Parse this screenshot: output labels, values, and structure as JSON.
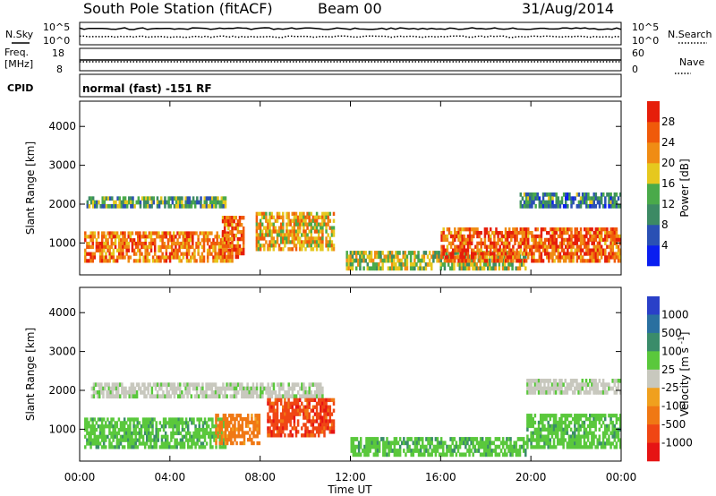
{
  "header": {
    "station_title": "South Pole Station (fitACF)",
    "beam": "Beam 00",
    "date": "31/Aug/2014"
  },
  "status_panels": {
    "nsky_label": "N.Sky",
    "nsearch_label": "N.Search",
    "noise_ticks_left": [
      "10^5",
      "10^0"
    ],
    "noise_ticks_right": [
      "10^5",
      "10^0"
    ],
    "freq_label_1": "Freq.",
    "freq_label_2": "[MHz]",
    "freq_ticks": [
      "18",
      "8"
    ],
    "nave_label": "Nave",
    "nave_ticks": [
      "60",
      "0"
    ],
    "cpid_label": "CPID",
    "cpid_text": "normal (fast) -151 RF"
  },
  "colors": {
    "power_scale": [
      "#0a1ef0",
      "#2a50b4",
      "#3c8a64",
      "#4aaa4a",
      "#e6c81e",
      "#f08c14",
      "#f05a0a",
      "#e61e0a"
    ],
    "velocity_scale": [
      "#2a40c8",
      "#2a70a0",
      "#3a8c6a",
      "#5ac83c",
      "#c8c8be",
      "#f0a01e",
      "#f07814",
      "#f04614",
      "#e61414"
    ]
  },
  "chart_data": [
    {
      "type": "heatmap",
      "title": "",
      "ylabel": "Slant Range [km]",
      "xlabel": "",
      "x_ticks": [
        "00:00",
        "04:00",
        "08:00",
        "12:00",
        "16:00",
        "20:00",
        "00:00"
      ],
      "y_ticks": [
        1000,
        2000,
        3000,
        4000
      ],
      "xlim": [
        "00:00",
        "24:00"
      ],
      "ylim": [
        180,
        4650
      ],
      "colorbar": {
        "label": "Power [dB]",
        "ticks": [
          4,
          8,
          12,
          16,
          20,
          24,
          28
        ],
        "range": [
          0,
          32
        ]
      },
      "echo_regions": [
        {
          "t_start": 0.2,
          "t_end": 6.8,
          "r_min": 500,
          "r_max": 1300,
          "level": 24
        },
        {
          "t_start": 0.3,
          "t_end": 6.5,
          "r_min": 1900,
          "r_max": 2200,
          "level": 12
        },
        {
          "t_start": 6.3,
          "t_end": 7.3,
          "r_min": 600,
          "r_max": 1700,
          "level": 26
        },
        {
          "t_start": 7.8,
          "t_end": 11.3,
          "r_min": 800,
          "r_max": 1800,
          "level": 20
        },
        {
          "t_start": 11.8,
          "t_end": 19.8,
          "r_min": 300,
          "r_max": 800,
          "level": 16
        },
        {
          "t_start": 16.0,
          "t_end": 24.0,
          "r_min": 500,
          "r_max": 1400,
          "level": 26
        },
        {
          "t_start": 19.5,
          "t_end": 24.0,
          "r_min": 1900,
          "r_max": 2300,
          "level": 10
        }
      ]
    },
    {
      "type": "heatmap",
      "title": "",
      "ylabel": "Slant Range [km]",
      "xlabel": "Time UT",
      "x_ticks": [
        "00:00",
        "04:00",
        "08:00",
        "12:00",
        "16:00",
        "20:00",
        "00:00"
      ],
      "y_ticks": [
        1000,
        2000,
        3000,
        4000
      ],
      "xlim": [
        "00:00",
        "24:00"
      ],
      "ylim": [
        180,
        4650
      ],
      "colorbar": {
        "label": "Velocity [m s^-1]",
        "ticks": [
          1000,
          500,
          100,
          25,
          -25,
          -100,
          -500,
          -1000
        ]
      },
      "echo_regions": [
        {
          "t_start": 0.2,
          "t_end": 6.5,
          "r_min": 500,
          "r_max": 1300,
          "level": 100
        },
        {
          "t_start": 0.5,
          "t_end": 10.8,
          "r_min": 1800,
          "r_max": 2200,
          "level": 0
        },
        {
          "t_start": 6.0,
          "t_end": 8.0,
          "r_min": 600,
          "r_max": 1400,
          "level": -100
        },
        {
          "t_start": 8.3,
          "t_end": 11.3,
          "r_min": 800,
          "r_max": 1800,
          "level": -500
        },
        {
          "t_start": 12.0,
          "t_end": 19.8,
          "r_min": 300,
          "r_max": 800,
          "level": 100
        },
        {
          "t_start": 19.8,
          "t_end": 24.0,
          "r_min": 500,
          "r_max": 1400,
          "level": 100
        },
        {
          "t_start": 19.8,
          "t_end": 24.0,
          "r_min": 1900,
          "r_max": 2300,
          "level": 0
        }
      ]
    }
  ]
}
